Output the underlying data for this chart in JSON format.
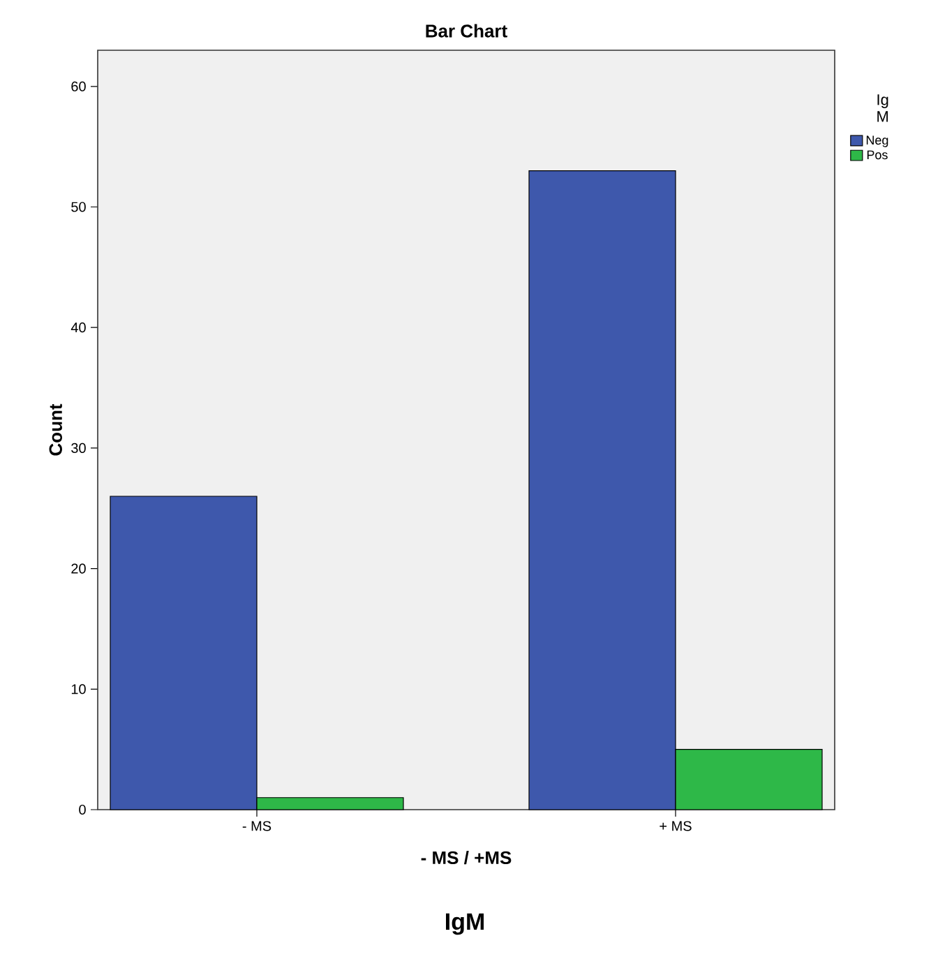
{
  "chart_data": {
    "type": "bar",
    "title": "Bar Chart",
    "xlabel": "- MS / +MS",
    "ylabel": "Count",
    "legend_title": "Ig M",
    "categories": [
      "- MS",
      "+ MS"
    ],
    "series": [
      {
        "name": "Neg",
        "color": "#3e58ac",
        "values": [
          26,
          53
        ]
      },
      {
        "name": "Pos",
        "color": "#2eb848",
        "values": [
          1,
          5
        ]
      }
    ],
    "ylim": [
      0,
      63
    ],
    "yticks": [
      0,
      10,
      20,
      30,
      40,
      50,
      60
    ],
    "grid": false,
    "legend": "top right",
    "annotations": [
      "IgM"
    ]
  }
}
